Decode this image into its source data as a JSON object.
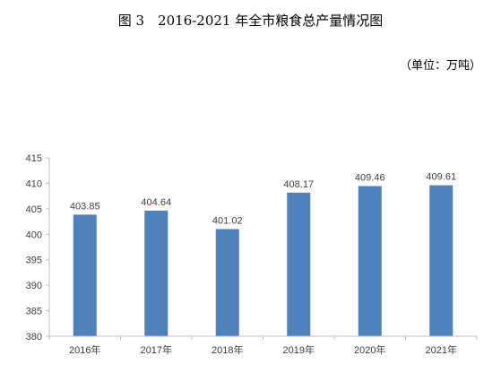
{
  "header": {
    "title": "图 3　2016-2021 年全市粮食总产量情况图",
    "unit_note": "（单位：万吨）"
  },
  "colors": {
    "bar": "#4f81bd",
    "axis": "#bfbfbf",
    "text": "#404040"
  },
  "chart_data": {
    "type": "bar",
    "title": "图 3　2016-2021 年全市粮食总产量情况图",
    "categories": [
      "2016年",
      "2017年",
      "2018年",
      "2019年",
      "2020年",
      "2021年"
    ],
    "series": [
      {
        "values": [
          403.85,
          404.64,
          401.02,
          408.17,
          409.46,
          409.61
        ]
      }
    ],
    "data_labels": [
      "403.85",
      "404.64",
      "401.02",
      "408.17",
      "409.46",
      "409.61"
    ],
    "ylim": [
      380,
      415
    ],
    "yticks": [
      380,
      385,
      390,
      395,
      400,
      405,
      410,
      415
    ],
    "grid": false,
    "legend": "none"
  }
}
